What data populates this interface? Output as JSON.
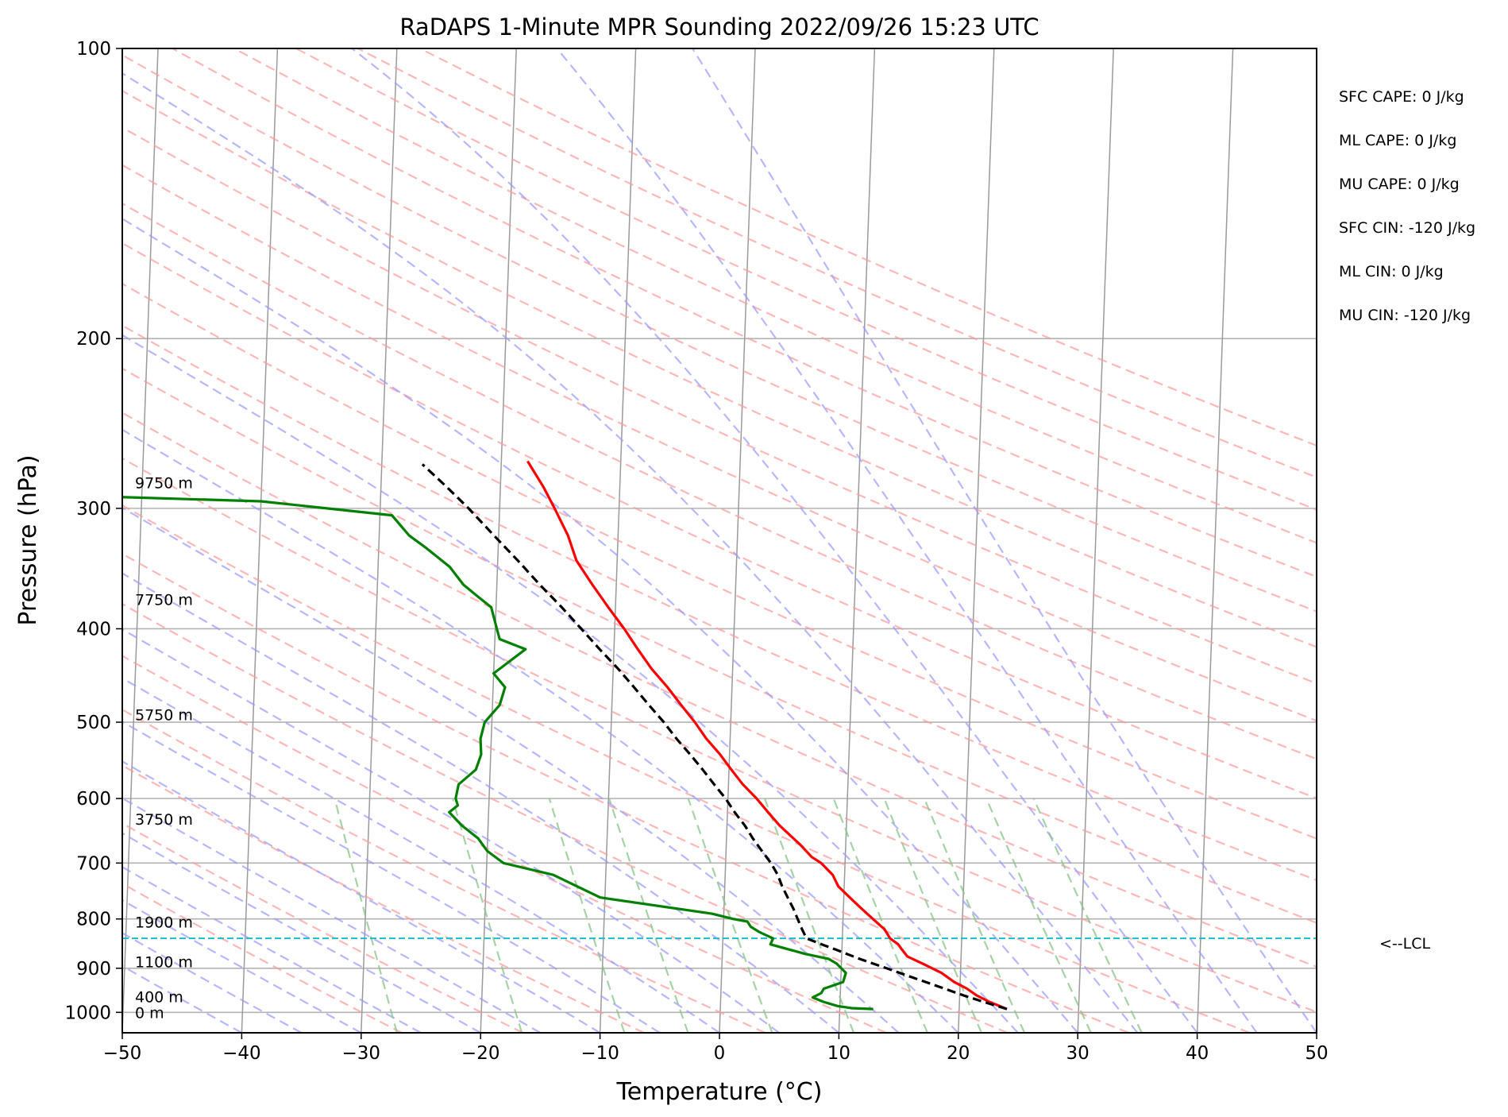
{
  "chart_data": {
    "type": "line",
    "subtype": "skew-t log-p",
    "title": "RaDAPS 1-Minute MPR Sounding 2022/09/26 15:23 UTC",
    "xlabel": "Temperature (°C)",
    "ylabel": "Pressure (hPa)",
    "xlim": [
      -50,
      50
    ],
    "ylim": [
      1050,
      100
    ],
    "y_scale": "log",
    "grid": true,
    "x_ticks": [
      -50,
      -40,
      -30,
      -20,
      -10,
      0,
      10,
      20,
      30,
      40,
      50
    ],
    "x_tick_labels": [
      "−50",
      "−40",
      "−30",
      "−20",
      "−10",
      "0",
      "10",
      "20",
      "30",
      "40",
      "50"
    ],
    "y_ticks": [
      100,
      200,
      300,
      400,
      500,
      600,
      700,
      800,
      900,
      1000
    ],
    "y_tick_labels": [
      "100",
      "200",
      "300",
      "400",
      "500",
      "600",
      "700",
      "800",
      "900",
      "1000"
    ],
    "colors": {
      "temperature": "#ff0000",
      "dewpoint": "#008000",
      "parcel": "#000000",
      "lcl": "#17becf",
      "dry_adiabat": "#ff9999",
      "moist_adiabat": "#9999ff",
      "mixing_ratio": "#88c488",
      "isotherm": "#9a9a9a"
    },
    "series": [
      {
        "key": "temperature",
        "pressure": [
          992,
          975,
          960,
          945,
          930,
          910,
          890,
          875,
          860,
          850,
          838,
          820,
          800,
          780,
          760,
          740,
          720,
          700,
          690,
          670,
          640,
          620,
          600,
          580,
          560,
          540,
          520,
          500,
          480,
          460,
          440,
          420,
          400,
          380,
          360,
          340,
          320,
          300,
          285,
          268
        ],
        "values": [
          24.0,
          22.5,
          21.4,
          20.6,
          19.5,
          18.4,
          16.8,
          15.5,
          15.0,
          14.7,
          14.0,
          13.5,
          12.5,
          11.5,
          10.5,
          9.5,
          9.0,
          8.0,
          7.2,
          6.2,
          4.4,
          3.4,
          2.4,
          1.2,
          0.2,
          -0.8,
          -2.0,
          -3.0,
          -4.2,
          -5.4,
          -6.8,
          -8.0,
          -9.2,
          -10.6,
          -12.0,
          -13.4,
          -14.2,
          -15.4,
          -16.4,
          -17.8
        ]
      },
      {
        "key": "dewpoint",
        "pressure": [
          992,
          990,
          985,
          975,
          965,
          955,
          945,
          930,
          910,
          890,
          880,
          870,
          860,
          850,
          838,
          825,
          815,
          805,
          800,
          790,
          760,
          720,
          700,
          680,
          660,
          640,
          620,
          610,
          600,
          580,
          560,
          540,
          520,
          500,
          480,
          460,
          445,
          420,
          410,
          395,
          380,
          370,
          360,
          345,
          330,
          320,
          305,
          295,
          290
        ],
        "values": [
          12.8,
          11.0,
          9.8,
          8.6,
          7.7,
          8.4,
          8.6,
          10.2,
          10.4,
          9.6,
          8.9,
          7.0,
          5.5,
          4.0,
          4.2,
          3.0,
          2.3,
          2.0,
          0.8,
          -1.0,
          -10.4,
          -14.4,
          -18.6,
          -20.0,
          -20.8,
          -22.2,
          -23.3,
          -22.6,
          -22.8,
          -22.6,
          -21.2,
          -20.8,
          -20.9,
          -20.6,
          -19.4,
          -19.0,
          -20.0,
          -17.4,
          -19.6,
          -20.0,
          -20.4,
          -21.6,
          -22.8,
          -24.0,
          -26.0,
          -27.5,
          -29.0,
          -40.0,
          -60.0
        ]
      },
      {
        "key": "parcel",
        "pressure": [
          992,
          975,
          960,
          940,
          920,
          900,
          880,
          860,
          850,
          838,
          820,
          800,
          780,
          760,
          740,
          720,
          700,
          680,
          660,
          640,
          620,
          600,
          580,
          560,
          540,
          520,
          500,
          480,
          460,
          440,
          420,
          400,
          380,
          360,
          340,
          320,
          300,
          285,
          270
        ],
        "values": [
          24.0,
          22.0,
          20.3,
          18.2,
          16.0,
          13.8,
          11.5,
          9.4,
          8.3,
          7.0,
          6.6,
          6.2,
          5.8,
          5.3,
          4.8,
          4.4,
          3.8,
          3.0,
          2.2,
          1.5,
          0.6,
          -0.2,
          -1.2,
          -2.2,
          -3.3,
          -4.5,
          -5.6,
          -6.9,
          -8.2,
          -9.6,
          -11.2,
          -12.8,
          -14.5,
          -16.4,
          -18.3,
          -20.4,
          -22.6,
          -24.5,
          -26.6
        ]
      }
    ],
    "lcl": {
      "pressure": 838,
      "label": "<--LCL"
    },
    "height_labels": [
      {
        "text": "9750 m",
        "pressure": 282
      },
      {
        "text": "7750 m",
        "pressure": 373
      },
      {
        "text": "5750 m",
        "pressure": 491
      },
      {
        "text": "3750 m",
        "pressure": 630
      },
      {
        "text": "1900 m",
        "pressure": 806
      },
      {
        "text": "1100 m",
        "pressure": 886
      },
      {
        "text": "400 m",
        "pressure": 963
      },
      {
        "text": "0 m",
        "pressure": 1000
      }
    ],
    "indices": [
      "SFC CAPE: 0 J/kg",
      "ML CAPE: 0 J/kg",
      "MU CAPE: 0 J/kg",
      "SFC CIN: -120 J/kg",
      "ML CIN: 0 J/kg",
      "MU CIN: -120 J/kg"
    ]
  }
}
